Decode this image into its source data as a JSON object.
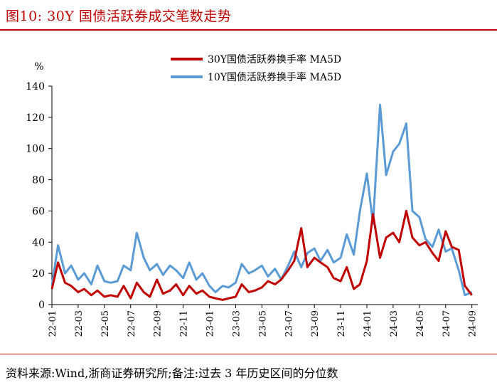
{
  "figure": {
    "title": "图10:  30Y 国债活跃券成交笔数走势",
    "source": "资料来源:Wind,浙商证券研究所;备注:过去 3 年历史区间的分位数"
  },
  "chart_data": {
    "type": "line",
    "ylabel": "%",
    "ylim": [
      0,
      140
    ],
    "yticks": [
      0,
      20,
      40,
      60,
      80,
      100,
      120,
      140
    ],
    "xlim": [
      "2022-01",
      "2024-09"
    ],
    "xticks": [
      "22-01",
      "22-03",
      "22-05",
      "22-07",
      "22-09",
      "22-11",
      "23-01",
      "23-03",
      "23-05",
      "23-07",
      "23-09",
      "23-11",
      "24-01",
      "24-03",
      "24-05",
      "24-07",
      "24-09"
    ],
    "legend_position": "top-center",
    "grid": false,
    "series": [
      {
        "name": "30Y国债活跃券换手率 MA5D",
        "color": "#c00000",
        "x": [
          "2022-01",
          "2022-01-15",
          "2022-02",
          "2022-02-15",
          "2022-03",
          "2022-03-15",
          "2022-04",
          "2022-04-15",
          "2022-05",
          "2022-05-15",
          "2022-06",
          "2022-06-15",
          "2022-07",
          "2022-07-15",
          "2022-08",
          "2022-08-15",
          "2022-09",
          "2022-09-15",
          "2022-10",
          "2022-10-15",
          "2022-11",
          "2022-11-15",
          "2022-12",
          "2022-12-15",
          "2023-01",
          "2023-01-15",
          "2023-02",
          "2023-02-15",
          "2023-03",
          "2023-03-15",
          "2023-04",
          "2023-04-15",
          "2023-05",
          "2023-05-15",
          "2023-06",
          "2023-06-15",
          "2023-07",
          "2023-07-15",
          "2023-08",
          "2023-08-15",
          "2023-09",
          "2023-09-15",
          "2023-10",
          "2023-10-15",
          "2023-11",
          "2023-11-15",
          "2023-12",
          "2023-12-15",
          "2024-01",
          "2024-01-15",
          "2024-02",
          "2024-02-15",
          "2024-03",
          "2024-03-15",
          "2024-04",
          "2024-04-15",
          "2024-05",
          "2024-05-15",
          "2024-06",
          "2024-06-15",
          "2024-07",
          "2024-07-15",
          "2024-08",
          "2024-08-15",
          "2024-09"
        ],
        "values": [
          10,
          27,
          14,
          12,
          8,
          10,
          6,
          9,
          5,
          6,
          5,
          12,
          4,
          14,
          8,
          5,
          16,
          7,
          9,
          13,
          6,
          12,
          7,
          9,
          5,
          4,
          3,
          4,
          5,
          13,
          8,
          9,
          11,
          15,
          13,
          16,
          22,
          28,
          49,
          24,
          30,
          27,
          24,
          17,
          15,
          24,
          10,
          13,
          28,
          58,
          30,
          43,
          46,
          40,
          60,
          43,
          38,
          40,
          33,
          28,
          47,
          37,
          35,
          12,
          6
        ]
      },
      {
        "name": "10Y国债活跃券换手率 MA5D",
        "color": "#5b9bd5",
        "x": [
          "2022-01",
          "2022-01-15",
          "2022-02",
          "2022-02-15",
          "2022-03",
          "2022-03-15",
          "2022-04",
          "2022-04-15",
          "2022-05",
          "2022-05-15",
          "2022-06",
          "2022-06-15",
          "2022-07",
          "2022-07-15",
          "2022-08",
          "2022-08-15",
          "2022-09",
          "2022-09-15",
          "2022-10",
          "2022-10-15",
          "2022-11",
          "2022-11-15",
          "2022-12",
          "2022-12-15",
          "2023-01",
          "2023-01-15",
          "2023-02",
          "2023-02-15",
          "2023-03",
          "2023-03-15",
          "2023-04",
          "2023-04-15",
          "2023-05",
          "2023-05-15",
          "2023-06",
          "2023-06-15",
          "2023-07",
          "2023-07-15",
          "2023-08",
          "2023-08-15",
          "2023-09",
          "2023-09-15",
          "2023-10",
          "2023-10-15",
          "2023-11",
          "2023-11-15",
          "2023-12",
          "2023-12-15",
          "2024-01",
          "2024-01-15",
          "2024-02",
          "2024-02-15",
          "2024-03",
          "2024-03-15",
          "2024-04",
          "2024-04-15",
          "2024-05",
          "2024-05-15",
          "2024-06",
          "2024-06-15",
          "2024-07",
          "2024-07-15",
          "2024-08",
          "2024-08-15",
          "2024-09"
        ],
        "values": [
          12,
          38,
          20,
          25,
          16,
          20,
          13,
          25,
          15,
          14,
          15,
          25,
          22,
          46,
          30,
          22,
          26,
          19,
          25,
          22,
          17,
          27,
          16,
          20,
          12,
          8,
          12,
          11,
          14,
          26,
          20,
          22,
          25,
          18,
          23,
          16,
          25,
          34,
          24,
          33,
          36,
          28,
          35,
          27,
          30,
          45,
          32,
          60,
          84,
          52,
          128,
          83,
          98,
          103,
          116,
          60,
          56,
          42,
          37,
          48,
          34,
          36,
          22,
          6,
          8
        ]
      }
    ]
  }
}
